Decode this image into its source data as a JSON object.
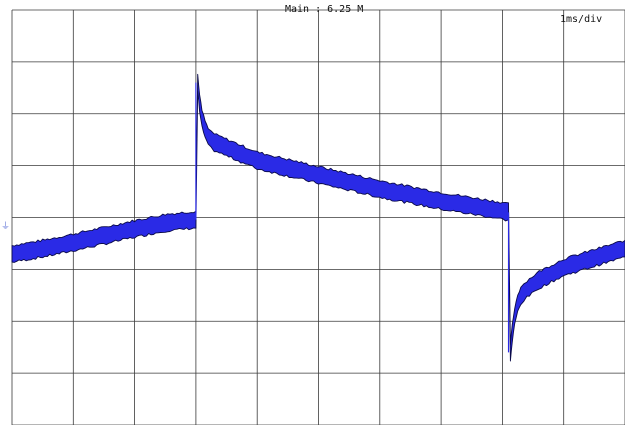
{
  "header": {
    "main_label": "Main : 6.25 M",
    "timebase_label": "1ms/div"
  },
  "ground_marker": "⏚",
  "colors": {
    "background": "#ffffff",
    "grid": "#3a3a3a",
    "trace_fill": "#2a2ae6",
    "trace_edge": "#0b0b4a"
  },
  "chart_data": {
    "type": "line",
    "title": "",
    "xlabel": "",
    "ylabel": "",
    "grid": true,
    "x_divisions": 10,
    "y_divisions": 8,
    "xlim": [
      0,
      10
    ],
    "ylim": [
      -4,
      4
    ],
    "x_unit": "ms",
    "series": [
      {
        "x": [
          0.0,
          0.5,
          1.0,
          1.5,
          2.0,
          2.5,
          3.0,
          3.03,
          3.06,
          3.1,
          3.15,
          3.2,
          3.3,
          3.5,
          4.0,
          5.0,
          6.0,
          7.0,
          8.0,
          8.1,
          8.13,
          8.16,
          8.2,
          8.25,
          8.3,
          8.4,
          8.6,
          9.0,
          9.5,
          10.0
        ],
        "y_center": [
          -0.7,
          -0.6,
          -0.48,
          -0.35,
          -0.22,
          -0.1,
          -0.04,
          2.6,
          2.2,
          1.9,
          1.7,
          1.55,
          1.45,
          1.35,
          1.1,
          0.82,
          0.55,
          0.32,
          0.13,
          0.1,
          -2.6,
          -2.25,
          -1.9,
          -1.65,
          -1.5,
          -1.38,
          -1.2,
          -0.96,
          -0.78,
          -0.6
        ],
        "band_half_width": 0.16
      }
    ]
  }
}
